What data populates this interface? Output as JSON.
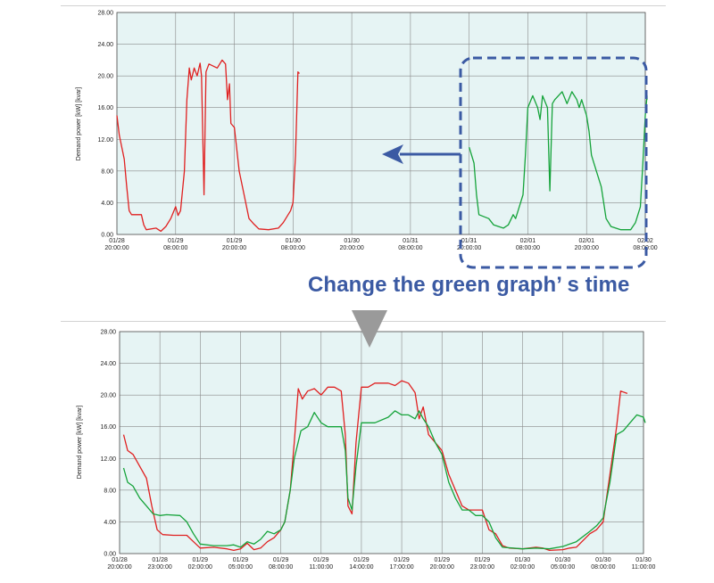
{
  "caption": "Change the green graph’ s time",
  "colors": {
    "red": "#e02020",
    "green": "#15a33a",
    "accent": "#3b5aa3",
    "plot_bg": "#e6f4f4",
    "grid": "#8a8a8a",
    "arrow_gray": "#9a9a9a"
  },
  "icons": {
    "left_arrow": "left-arrow-icon",
    "down_arrow": "down-triangle-icon"
  },
  "chart_data": [
    {
      "type": "line",
      "ylabel": "Demand power [kW] [kvar]",
      "ylim": [
        0,
        28
      ],
      "yticks": [
        "28.00",
        "24.00",
        "20.00",
        "16.00",
        "12.00",
        "8.00",
        "4.00",
        "0.00"
      ],
      "xlim": [
        0,
        108
      ],
      "grid": true,
      "xticks": [
        {
          "at": 0,
          "l1": "01/28",
          "l2": "20:00:00"
        },
        {
          "at": 12,
          "l1": "01/29",
          "l2": "08:00:00"
        },
        {
          "at": 24,
          "l1": "01/29",
          "l2": "20:00:00"
        },
        {
          "at": 36,
          "l1": "01/30",
          "l2": "08:00:00"
        },
        {
          "at": 48,
          "l1": "01/30",
          "l2": "20:00:00"
        },
        {
          "at": 60,
          "l1": "01/31",
          "l2": "08:00:00"
        },
        {
          "at": 72,
          "l1": "01/31",
          "l2": "20:00:00"
        },
        {
          "at": 84,
          "l1": "02/01",
          "l2": "08:00:00"
        },
        {
          "at": 96,
          "l1": "02/01",
          "l2": "20:00:00"
        },
        {
          "at": 108,
          "l1": "02/02",
          "l2": "08:00:00"
        }
      ],
      "series": [
        {
          "color": "red",
          "points": [
            [
              0,
              15
            ],
            [
              0.5,
              12.5
            ],
            [
              1.5,
              9.5
            ],
            [
              2,
              6
            ],
            [
              2.5,
              3
            ],
            [
              3,
              2.5
            ],
            [
              5,
              2.5
            ],
            [
              5.5,
              1.2
            ],
            [
              6,
              0.6
            ],
            [
              8,
              0.8
            ],
            [
              9,
              0.4
            ],
            [
              10,
              1
            ],
            [
              11,
              2
            ],
            [
              12,
              3.5
            ],
            [
              12.5,
              2.4
            ],
            [
              13,
              3
            ],
            [
              13.8,
              8
            ],
            [
              14.3,
              17
            ],
            [
              14.8,
              21
            ],
            [
              15.2,
              19.5
            ],
            [
              15.8,
              21
            ],
            [
              16.4,
              20
            ],
            [
              17,
              21.6
            ],
            [
              17.3,
              20
            ],
            [
              17.8,
              5
            ],
            [
              18.2,
              20.5
            ],
            [
              18.8,
              21.5
            ],
            [
              20.5,
              21
            ],
            [
              21.5,
              22
            ],
            [
              22.2,
              21.5
            ],
            [
              22.6,
              17
            ],
            [
              23,
              19
            ],
            [
              23.3,
              14
            ],
            [
              24,
              13.5
            ],
            [
              25,
              8
            ],
            [
              26,
              5
            ],
            [
              27,
              2
            ],
            [
              28,
              1.3
            ],
            [
              29,
              0.7
            ],
            [
              31,
              0.6
            ],
            [
              33,
              0.8
            ],
            [
              34,
              1.5
            ],
            [
              35.5,
              3
            ],
            [
              36,
              4
            ],
            [
              36.5,
              10
            ],
            [
              37,
              20.5
            ],
            [
              37.3,
              20.3
            ]
          ]
        },
        {
          "color": "green",
          "points": [
            [
              72,
              11
            ],
            [
              73,
              9
            ],
            [
              73.5,
              5
            ],
            [
              74,
              2.5
            ],
            [
              76,
              2
            ],
            [
              77,
              1.2
            ],
            [
              79,
              0.8
            ],
            [
              80,
              1.2
            ],
            [
              81,
              2.5
            ],
            [
              81.5,
              2
            ],
            [
              82,
              3
            ],
            [
              83,
              5
            ],
            [
              83.5,
              10
            ],
            [
              84,
              16
            ],
            [
              85,
              17.5
            ],
            [
              86,
              16
            ],
            [
              86.5,
              14.5
            ],
            [
              87,
              17.5
            ],
            [
              88,
              16
            ],
            [
              88.5,
              5.5
            ],
            [
              89,
              16.5
            ],
            [
              89.5,
              17
            ],
            [
              91,
              18
            ],
            [
              92,
              16.5
            ],
            [
              93,
              18
            ],
            [
              94,
              17
            ],
            [
              94.5,
              16
            ],
            [
              95,
              17
            ],
            [
              96,
              15
            ],
            [
              96.5,
              13
            ],
            [
              97,
              10
            ],
            [
              98,
              8
            ],
            [
              99,
              6
            ],
            [
              99.5,
              4
            ],
            [
              100,
              2
            ],
            [
              101,
              1
            ],
            [
              103,
              0.6
            ],
            [
              105,
              0.6
            ],
            [
              106,
              1.5
            ],
            [
              107,
              3.5
            ],
            [
              107.5,
              9
            ],
            [
              108,
              15
            ],
            [
              108.5,
              17.5
            ],
            [
              109,
              17
            ]
          ]
        }
      ]
    },
    {
      "type": "line",
      "ylabel": "Demand power [kW] [kvar]",
      "ylim": [
        0,
        28
      ],
      "yticks": [
        "28.00",
        "24.00",
        "20.00",
        "16.00",
        "12.00",
        "8.00",
        "4.00",
        "0.00"
      ],
      "xlim": [
        0,
        39
      ],
      "grid": true,
      "xticks": [
        {
          "at": 0,
          "l1": "01/28",
          "l2": "20:00:00"
        },
        {
          "at": 3,
          "l1": "01/28",
          "l2": "23:00:00"
        },
        {
          "at": 6,
          "l1": "01/29",
          "l2": "02:00:00"
        },
        {
          "at": 9,
          "l1": "01/29",
          "l2": "05:00:00"
        },
        {
          "at": 12,
          "l1": "01/29",
          "l2": "08:00:00"
        },
        {
          "at": 15,
          "l1": "01/29",
          "l2": "11:00:00"
        },
        {
          "at": 18,
          "l1": "01/29",
          "l2": "14:00:00"
        },
        {
          "at": 21,
          "l1": "01/29",
          "l2": "17:00:00"
        },
        {
          "at": 24,
          "l1": "01/29",
          "l2": "20:00:00"
        },
        {
          "at": 27,
          "l1": "01/29",
          "l2": "23:00:00"
        },
        {
          "at": 30,
          "l1": "01/30",
          "l2": "02:00:00"
        },
        {
          "at": 33,
          "l1": "01/30",
          "l2": "05:00:00"
        },
        {
          "at": 36,
          "l1": "01/30",
          "l2": "08:00:00"
        },
        {
          "at": 39,
          "l1": "01/30",
          "l2": "11:00:00"
        }
      ],
      "series": [
        {
          "color": "red",
          "points": [
            [
              0.3,
              15
            ],
            [
              0.6,
              13
            ],
            [
              1,
              12.5
            ],
            [
              1.5,
              11
            ],
            [
              2,
              9.5
            ],
            [
              2.4,
              6
            ],
            [
              2.8,
              3
            ],
            [
              3.2,
              2.4
            ],
            [
              4,
              2.3
            ],
            [
              5,
              2.3
            ],
            [
              5.5,
              1.5
            ],
            [
              6,
              0.7
            ],
            [
              7,
              0.8
            ],
            [
              8,
              0.6
            ],
            [
              8.5,
              0.4
            ],
            [
              9,
              0.6
            ],
            [
              9.5,
              1.3
            ],
            [
              10,
              0.5
            ],
            [
              10.5,
              0.7
            ],
            [
              11,
              1.5
            ],
            [
              11.5,
              2
            ],
            [
              12,
              3
            ],
            [
              12.3,
              4
            ],
            [
              12.7,
              8
            ],
            [
              13,
              14
            ],
            [
              13.3,
              20.8
            ],
            [
              13.6,
              19.5
            ],
            [
              14,
              20.5
            ],
            [
              14.5,
              20.8
            ],
            [
              15,
              20
            ],
            [
              15.5,
              21
            ],
            [
              16,
              21
            ],
            [
              16.5,
              20.5
            ],
            [
              16.8,
              15
            ],
            [
              17,
              6
            ],
            [
              17.3,
              5
            ],
            [
              17.6,
              14
            ],
            [
              18,
              21
            ],
            [
              18.5,
              21
            ],
            [
              19,
              21.5
            ],
            [
              20,
              21.5
            ],
            [
              20.5,
              21.2
            ],
            [
              21,
              21.8
            ],
            [
              21.5,
              21.5
            ],
            [
              22,
              20.3
            ],
            [
              22.3,
              17
            ],
            [
              22.6,
              18.5
            ],
            [
              23,
              15
            ],
            [
              23.5,
              14
            ],
            [
              24,
              13
            ],
            [
              24.5,
              10
            ],
            [
              25,
              8
            ],
            [
              25.5,
              6
            ],
            [
              26,
              5.5
            ],
            [
              27,
              5.5
            ],
            [
              27.5,
              3
            ],
            [
              28,
              2.5
            ],
            [
              28.5,
              1
            ],
            [
              29,
              0.7
            ],
            [
              30,
              0.6
            ],
            [
              31,
              0.8
            ],
            [
              31.5,
              0.7
            ],
            [
              32,
              0.4
            ],
            [
              33,
              0.5
            ],
            [
              33.5,
              0.7
            ],
            [
              34,
              0.8
            ],
            [
              35,
              2.5
            ],
            [
              35.5,
              3
            ],
            [
              36,
              4
            ],
            [
              36.5,
              10
            ],
            [
              37,
              16
            ],
            [
              37.3,
              20.5
            ],
            [
              37.8,
              20.2
            ]
          ]
        },
        {
          "color": "green",
          "points": [
            [
              0.3,
              10.8
            ],
            [
              0.6,
              9
            ],
            [
              1,
              8.5
            ],
            [
              1.5,
              7
            ],
            [
              2,
              6
            ],
            [
              2.5,
              5
            ],
            [
              3,
              4.8
            ],
            [
              3.5,
              4.9
            ],
            [
              4.5,
              4.8
            ],
            [
              5,
              4
            ],
            [
              5.5,
              2.5
            ],
            [
              6,
              1.2
            ],
            [
              7,
              1
            ],
            [
              8,
              1
            ],
            [
              8.5,
              1.1
            ],
            [
              9,
              0.8
            ],
            [
              9.5,
              1.5
            ],
            [
              10,
              1.2
            ],
            [
              10.5,
              1.8
            ],
            [
              11,
              2.8
            ],
            [
              11.5,
              2.5
            ],
            [
              12,
              3
            ],
            [
              12.3,
              4
            ],
            [
              12.7,
              8
            ],
            [
              13,
              12
            ],
            [
              13.5,
              15.5
            ],
            [
              14,
              16
            ],
            [
              14.5,
              17.8
            ],
            [
              15,
              16.5
            ],
            [
              15.5,
              16
            ],
            [
              16,
              16
            ],
            [
              16.5,
              16
            ],
            [
              16.8,
              13
            ],
            [
              17,
              7
            ],
            [
              17.3,
              5.5
            ],
            [
              17.6,
              11
            ],
            [
              18,
              16.5
            ],
            [
              18.5,
              16.5
            ],
            [
              19,
              16.5
            ],
            [
              20,
              17.2
            ],
            [
              20.5,
              18
            ],
            [
              21,
              17.5
            ],
            [
              21.5,
              17.5
            ],
            [
              22,
              17
            ],
            [
              22.3,
              18
            ],
            [
              22.6,
              17
            ],
            [
              23,
              16
            ],
            [
              23.5,
              14
            ],
            [
              24,
              12.5
            ],
            [
              24.5,
              9
            ],
            [
              25,
              7
            ],
            [
              25.5,
              5.5
            ],
            [
              26,
              5.5
            ],
            [
              26.5,
              4.8
            ],
            [
              27,
              4.8
            ],
            [
              27.5,
              4
            ],
            [
              28,
              2
            ],
            [
              28.5,
              0.8
            ],
            [
              30,
              0.6
            ],
            [
              31,
              0.7
            ],
            [
              32,
              0.6
            ],
            [
              33,
              0.9
            ],
            [
              34,
              1.5
            ],
            [
              35,
              2.8
            ],
            [
              35.5,
              3.5
            ],
            [
              36,
              4.5
            ],
            [
              36.5,
              9
            ],
            [
              37,
              15
            ],
            [
              37.5,
              15.5
            ],
            [
              38,
              16.5
            ],
            [
              38.5,
              17.5
            ],
            [
              39,
              17.2
            ],
            [
              39.5,
              16.5
            ]
          ]
        }
      ]
    }
  ]
}
